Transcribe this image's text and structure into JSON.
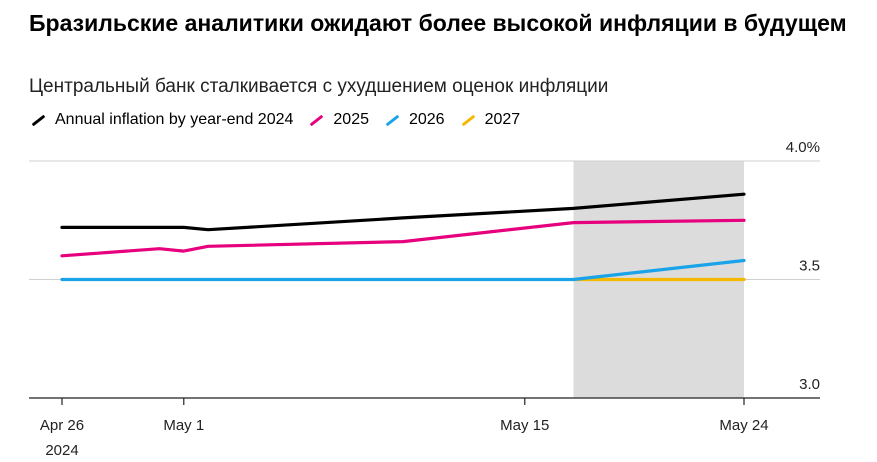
{
  "header": {
    "title": "Бразильские аналитики ожидают более высокой инфляции в будущем",
    "subtitle": "Центральный банк сталкивается с ухудшением оценок инфляции"
  },
  "chart_data": {
    "type": "line",
    "title": "Бразильские аналитики ожидают более высокой инфляции в будущем",
    "subtitle": "Центральный банк сталкивается с ухудшением оценок инфляции",
    "xlabel": "",
    "ylabel": "",
    "x_range": [
      "2024-04-26",
      "2024-05-24"
    ],
    "ylim": [
      3.0,
      4.0
    ],
    "y_ticks": [
      {
        "value": 4.0,
        "label": "4.0%"
      },
      {
        "value": 3.5,
        "label": "3.5"
      },
      {
        "value": 3.0,
        "label": "3.0"
      }
    ],
    "x_ticks": [
      {
        "date": "2024-04-26",
        "label": "Apr 26",
        "sublabel": "2024"
      },
      {
        "date": "2024-05-01",
        "label": "May 1",
        "sublabel": ""
      },
      {
        "date": "2024-05-15",
        "label": "May 15",
        "sublabel": ""
      },
      {
        "date": "2024-05-24",
        "label": "May 24",
        "sublabel": ""
      }
    ],
    "highlight_range": [
      "2024-05-17",
      "2024-05-24"
    ],
    "legend_position": "top-left",
    "grid": "horizontal",
    "series": [
      {
        "name": "Annual inflation by year-end 2024",
        "color": "#000000",
        "points": [
          [
            "2024-04-26",
            3.72
          ],
          [
            "2024-04-30",
            3.72
          ],
          [
            "2024-05-01",
            3.72
          ],
          [
            "2024-05-02",
            3.71
          ],
          [
            "2024-05-10",
            3.76
          ],
          [
            "2024-05-17",
            3.8
          ],
          [
            "2024-05-24",
            3.86
          ]
        ]
      },
      {
        "name": "2025",
        "color": "#e6007e",
        "points": [
          [
            "2024-04-26",
            3.6
          ],
          [
            "2024-04-30",
            3.63
          ],
          [
            "2024-05-01",
            3.62
          ],
          [
            "2024-05-02",
            3.64
          ],
          [
            "2024-05-10",
            3.66
          ],
          [
            "2024-05-17",
            3.74
          ],
          [
            "2024-05-24",
            3.75
          ]
        ]
      },
      {
        "name": "2026",
        "color": "#1aa3e8",
        "points": [
          [
            "2024-04-26",
            3.5
          ],
          [
            "2024-05-17",
            3.5
          ],
          [
            "2024-05-24",
            3.58
          ]
        ]
      },
      {
        "name": "2027",
        "color": "#f5b800",
        "points": [
          [
            "2024-05-17",
            3.5
          ],
          [
            "2024-05-24",
            3.5
          ]
        ]
      }
    ]
  }
}
